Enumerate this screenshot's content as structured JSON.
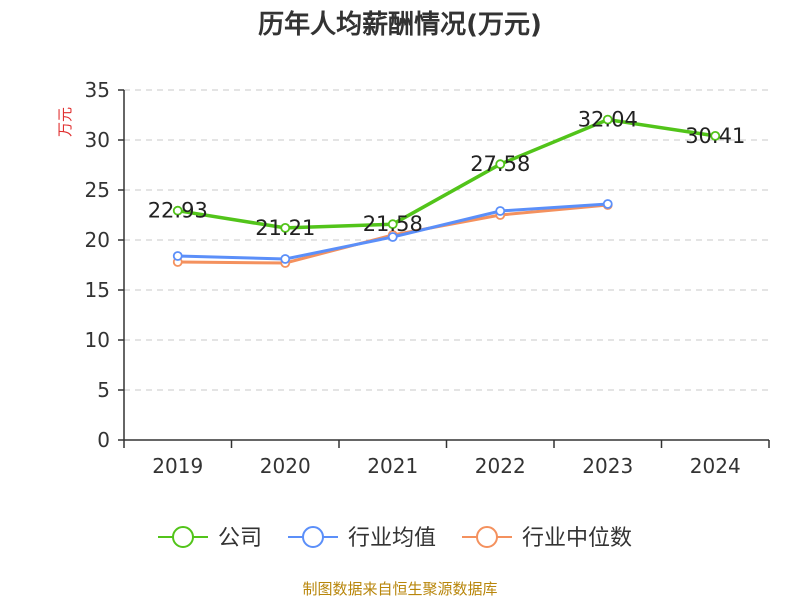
{
  "chart_data": {
    "type": "line",
    "title": "历年人均薪酬情况(万元)",
    "ylabel": "万元",
    "xlabel": "",
    "categories": [
      "2019",
      "2020",
      "2021",
      "2022",
      "2023",
      "2024"
    ],
    "ylim": [
      0,
      35
    ],
    "yticks": [
      0,
      5,
      10,
      15,
      20,
      25,
      30,
      35
    ],
    "grid": true,
    "legend_position": "bottom",
    "series": [
      {
        "name": "公司",
        "color": "#52c41a",
        "values": [
          22.93,
          21.21,
          21.58,
          27.58,
          32.04,
          30.41
        ],
        "labels": [
          "22.93",
          "21.21",
          "21.58",
          "27.58",
          "32.04",
          "30.41"
        ]
      },
      {
        "name": "行业均值",
        "color": "#5b8ff9",
        "values": [
          18.4,
          18.1,
          20.3,
          22.9,
          23.6,
          null
        ]
      },
      {
        "name": "行业中位数",
        "color": "#f4915e",
        "values": [
          17.8,
          17.7,
          20.5,
          22.5,
          23.5,
          null
        ]
      }
    ]
  },
  "footer": {
    "source": "制图数据来自恒生聚源数据库"
  }
}
